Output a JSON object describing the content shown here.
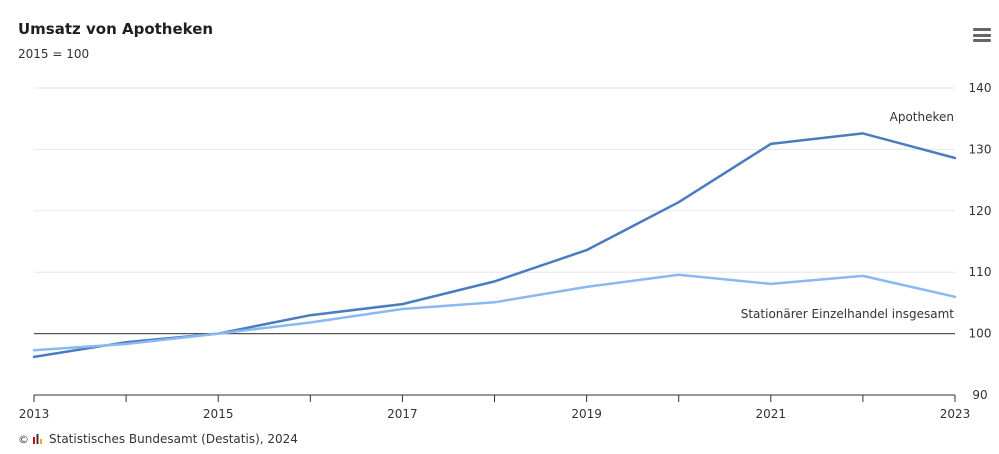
{
  "header": {
    "title": "Umsatz von Apotheken",
    "subtitle": "2015 = 100",
    "menu_icon": "hamburger-menu-icon"
  },
  "footer": {
    "copyright_symbol": "©",
    "logo_icon": "destatis-logo-icon",
    "source": "Statistisches Bundesamt (Destatis), 2024"
  },
  "colors": {
    "apotheken": "#4a7cc0",
    "einzelhandel": "#8ab8f2",
    "reference_line": "#555555",
    "grid": "#e6e6e6"
  },
  "chart_data": {
    "type": "line",
    "title": "Umsatz von Apotheken",
    "subtitle": "2015 = 100",
    "x": [
      2013,
      2014,
      2015,
      2016,
      2017,
      2018,
      2019,
      2020,
      2021,
      2022,
      2023
    ],
    "x_tick_labels": [
      "2013",
      "2015",
      "2017",
      "2019",
      "2021",
      "2023"
    ],
    "xlim": [
      2013,
      2023
    ],
    "ylim": [
      90,
      140
    ],
    "y_ticks": [
      90,
      100,
      110,
      120,
      130,
      140
    ],
    "y_axis_side": "right",
    "grid": true,
    "reference_line": 100,
    "series": [
      {
        "name": "Apotheken",
        "values": [
          96.2,
          98.6,
          100.0,
          103.0,
          104.8,
          108.5,
          113.6,
          121.4,
          130.9,
          132.6,
          128.6
        ]
      },
      {
        "name": "Stationärer Einzelhandel insgesamt",
        "values": [
          97.3,
          98.3,
          100.0,
          101.8,
          104.0,
          105.1,
          107.6,
          109.6,
          108.1,
          109.4,
          106.0
        ]
      }
    ]
  }
}
